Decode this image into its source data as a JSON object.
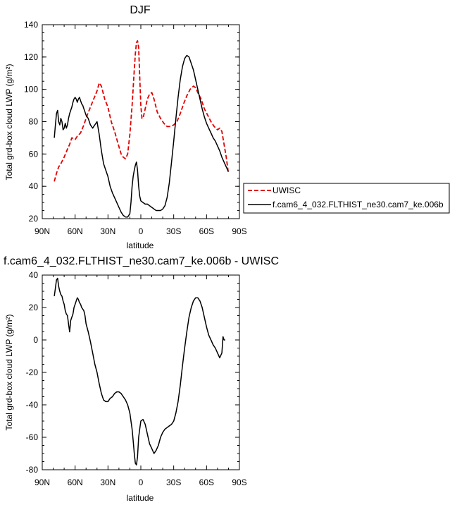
{
  "chart_data": [
    {
      "type": "line",
      "title": "DJF",
      "xlabel": "latitude",
      "ylabel": "Total grd-box cloud LWP (g/m²)",
      "xlim": [
        90,
        -90
      ],
      "ylim": [
        20,
        140
      ],
      "xticks": [
        90,
        60,
        30,
        0,
        -30,
        -60,
        -90
      ],
      "xtick_labels": [
        "90N",
        "60N",
        "30N",
        "0",
        "30S",
        "60S",
        "90S"
      ],
      "yticks": [
        20,
        40,
        60,
        80,
        100,
        120,
        140
      ],
      "legend": {
        "position": "right",
        "entries": [
          "UWISC",
          "f.cam6_4_032.FLTHIST_ne30.cam7_ke.006b"
        ]
      },
      "series": [
        {
          "name": "UWISC",
          "color": "#e00000",
          "dash": "dashed",
          "x": [
            79,
            77,
            75,
            73,
            70,
            67,
            65,
            63,
            60,
            58,
            55,
            52,
            49,
            46,
            43,
            40,
            38,
            36,
            33,
            30,
            27,
            24,
            21,
            18,
            16,
            14,
            12,
            10,
            8,
            6,
            5,
            4,
            3,
            2,
            1,
            0,
            -1,
            -2,
            -4,
            -6,
            -8,
            -10,
            -12,
            -15,
            -18,
            -21,
            -24,
            -27,
            -30,
            -33,
            -36,
            -39,
            -42,
            -45,
            -48,
            -50,
            -52,
            -55,
            -58,
            -61,
            -64,
            -67,
            -70,
            -72,
            -74,
            -76,
            -78,
            -80
          ],
          "y": [
            43,
            48,
            52,
            54,
            58,
            63,
            66,
            70,
            69,
            71,
            73,
            78,
            84,
            89,
            94,
            99,
            104,
            102,
            94,
            89,
            80,
            74,
            67,
            60,
            58,
            57,
            60,
            72,
            90,
            112,
            122,
            129,
            130,
            126,
            108,
            90,
            82,
            82,
            88,
            94,
            97,
            98,
            94,
            86,
            82,
            79,
            77,
            77,
            78,
            80,
            85,
            91,
            96,
            100,
            102,
            101,
            98,
            94,
            88,
            84,
            80,
            77,
            75,
            76,
            74,
            66,
            58,
            48
          ]
        },
        {
          "name": "f.cam6_4_032.FLTHIST_ne30.cam7_ke.006b",
          "color": "#000000",
          "dash": "solid",
          "x": [
            79,
            78,
            77,
            76,
            75,
            74,
            73,
            72,
            71,
            70,
            69,
            68,
            67,
            66,
            65,
            64,
            63,
            62,
            61,
            60,
            59,
            58,
            57,
            56,
            55,
            54,
            53,
            52,
            51,
            50,
            48,
            46,
            44,
            42,
            40,
            38,
            36,
            34,
            32,
            30,
            28,
            26,
            24,
            22,
            20,
            18,
            16,
            14,
            12,
            10,
            9,
            8,
            7,
            6,
            5,
            4,
            3,
            2,
            1,
            0,
            -2,
            -4,
            -6,
            -8,
            -10,
            -12,
            -14,
            -16,
            -18,
            -20,
            -22,
            -24,
            -26,
            -28,
            -30,
            -32,
            -34,
            -36,
            -38,
            -40,
            -42,
            -44,
            -46,
            -48,
            -50,
            -52,
            -54,
            -56,
            -58,
            -60,
            -62,
            -64,
            -66,
            -68,
            -70,
            -72,
            -74,
            -76,
            -78,
            -80
          ],
          "y": [
            70,
            78,
            85,
            87,
            80,
            78,
            82,
            80,
            75,
            76,
            79,
            76,
            78,
            82,
            85,
            87,
            89,
            92,
            94,
            95,
            94,
            92,
            94,
            95,
            93,
            91,
            90,
            88,
            86,
            84,
            82,
            78,
            76,
            78,
            80,
            72,
            62,
            54,
            50,
            46,
            40,
            36,
            33,
            30,
            27,
            24,
            22,
            21,
            21,
            23,
            30,
            40,
            46,
            50,
            53,
            55,
            50,
            40,
            34,
            31,
            30,
            29,
            29,
            28,
            27,
            26,
            25,
            25,
            25,
            26,
            28,
            33,
            42,
            55,
            68,
            82,
            95,
            106,
            114,
            119,
            121,
            120,
            116,
            112,
            106,
            100,
            94,
            88,
            83,
            79,
            76,
            73,
            70,
            68,
            65,
            62,
            58,
            55,
            52,
            49
          ]
        }
      ]
    },
    {
      "type": "line",
      "title": "f.cam6_4_032.FLTHIST_ne30.cam7_ke.006b - UWISC",
      "xlabel": "latitude",
      "ylabel": "Total grd-box cloud LWP (g/m²)",
      "xlim": [
        90,
        -90
      ],
      "ylim": [
        -80,
        40
      ],
      "xticks": [
        90,
        60,
        30,
        0,
        -30,
        -60,
        -90
      ],
      "xtick_labels": [
        "90N",
        "60N",
        "30N",
        "0",
        "30S",
        "60S",
        "90S"
      ],
      "yticks": [
        -80,
        -60,
        -40,
        -20,
        0,
        20,
        40
      ],
      "series": [
        {
          "color": "#000000",
          "dash": "solid",
          "x": [
            79,
            78,
            77,
            76,
            75,
            74,
            73,
            72,
            71,
            70,
            69,
            68,
            67,
            66,
            65,
            64,
            63,
            62,
            61,
            60,
            59,
            58,
            57,
            56,
            55,
            54,
            53,
            52,
            51,
            50,
            48,
            46,
            44,
            42,
            40,
            38,
            36,
            34,
            32,
            30,
            28,
            26,
            24,
            22,
            20,
            18,
            16,
            14,
            12,
            10,
            9,
            8,
            7,
            6,
            5,
            4,
            3,
            2,
            1,
            0,
            -2,
            -4,
            -6,
            -8,
            -10,
            -12,
            -14,
            -16,
            -18,
            -20,
            -22,
            -24,
            -26,
            -28,
            -30,
            -32,
            -34,
            -36,
            -38,
            -40,
            -42,
            -44,
            -46,
            -48,
            -50,
            -52,
            -54,
            -56,
            -58,
            -60,
            -62,
            -64,
            -66,
            -68,
            -70,
            -72,
            -74,
            -75,
            -76,
            -77
          ],
          "y": [
            27,
            32,
            37,
            38,
            33,
            30,
            28,
            27,
            24,
            22,
            18,
            16,
            15,
            10,
            5,
            12,
            14,
            16,
            20,
            22,
            24,
            26,
            25,
            23,
            22,
            20,
            19,
            18,
            15,
            10,
            5,
            -1,
            -8,
            -15,
            -20,
            -27,
            -33,
            -37,
            -38,
            -38,
            -36,
            -35,
            -33,
            -32,
            -32,
            -33,
            -35,
            -37,
            -40,
            -45,
            -50,
            -55,
            -62,
            -70,
            -76,
            -77,
            -72,
            -60,
            -55,
            -50,
            -49,
            -52,
            -58,
            -64,
            -67,
            -70,
            -68,
            -65,
            -60,
            -57,
            -55,
            -54,
            -53,
            -52,
            -50,
            -45,
            -38,
            -28,
            -16,
            -5,
            5,
            14,
            20,
            24,
            26,
            26,
            24,
            20,
            14,
            8,
            3,
            0,
            -3,
            -5,
            -8,
            -11,
            -8,
            2,
            0,
            0
          ]
        }
      ]
    }
  ]
}
